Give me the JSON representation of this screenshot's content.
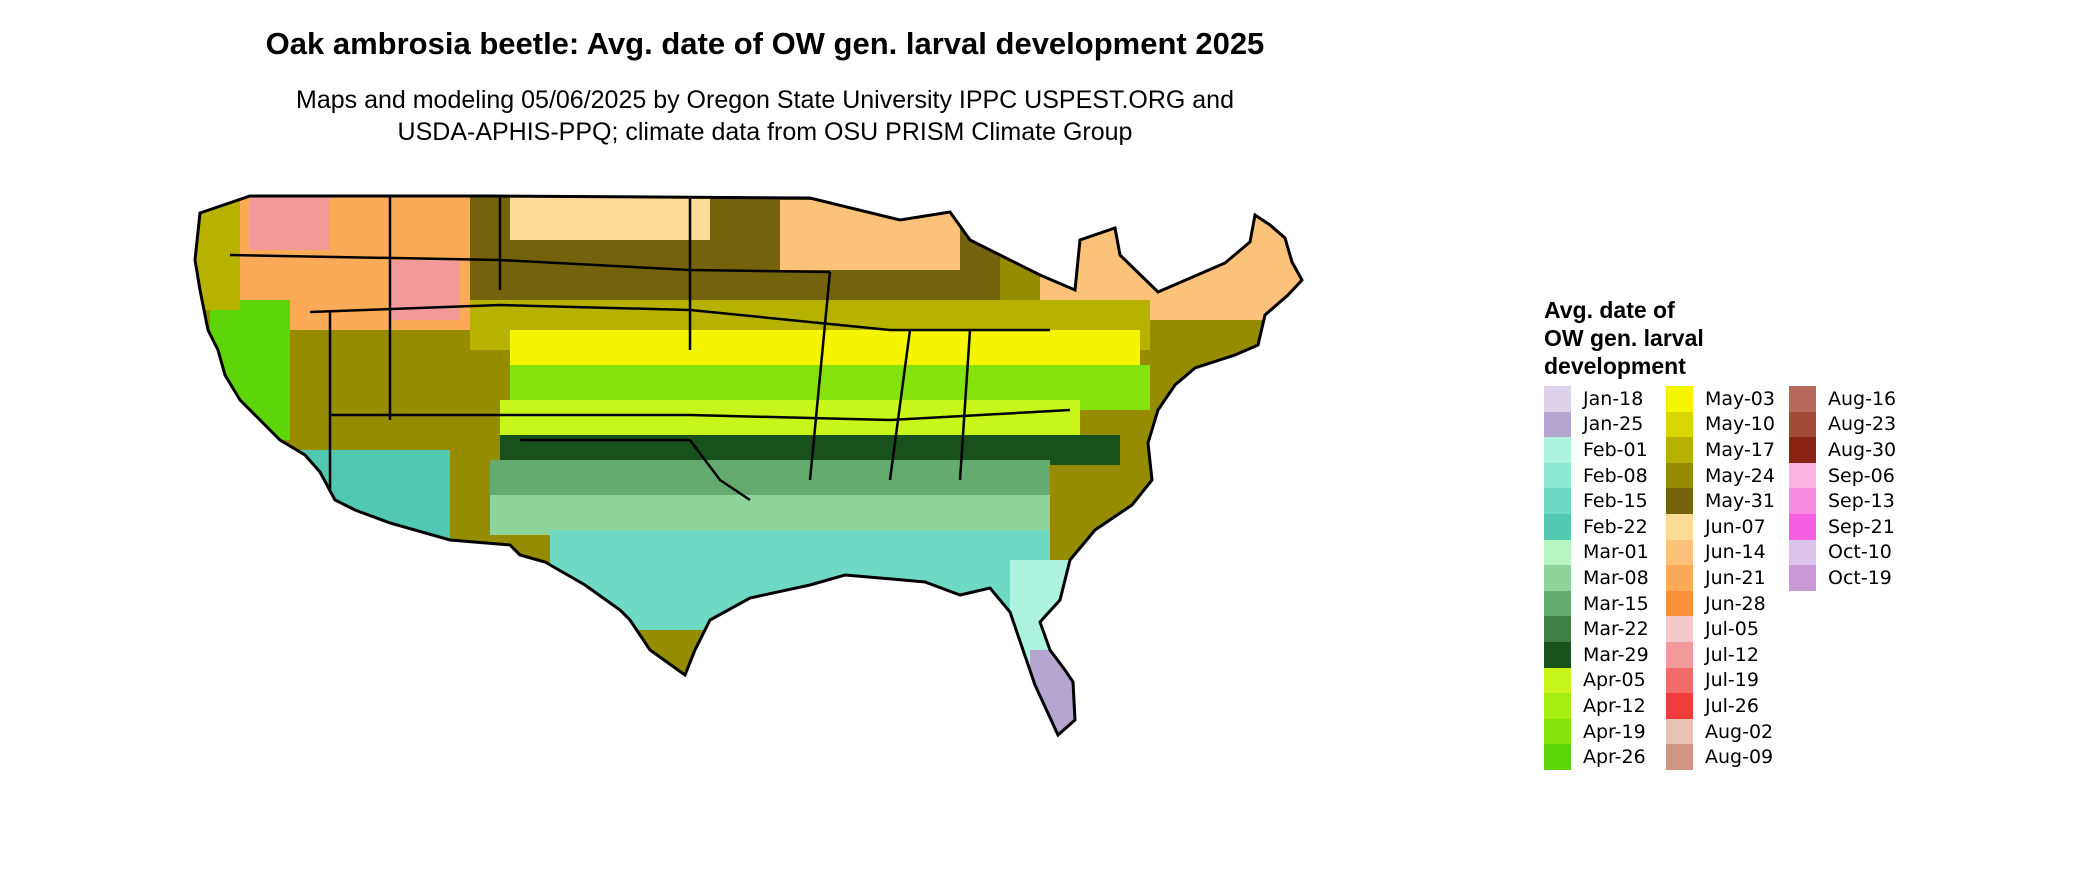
{
  "title": "Oak ambrosia beetle: Avg. date of OW gen. larval development 2025",
  "subtitle_line1": "Maps and modeling 05/06/2025 by Oregon State University IPPC USPEST.ORG and",
  "subtitle_line2": "USDA-APHIS-PPQ; climate data from OSU PRISM Climate Group",
  "legend": {
    "title_lines": [
      "Avg. date of",
      "OW gen. larval",
      "development"
    ],
    "items": [
      {
        "label": "Jan-18",
        "color": "#dcd3ea"
      },
      {
        "label": "Jan-25",
        "color": "#b4a6cf"
      },
      {
        "label": "Feb-01",
        "color": "#aef3e0"
      },
      {
        "label": "Feb-08",
        "color": "#8ee8d2"
      },
      {
        "label": "Feb-15",
        "color": "#6fdac4"
      },
      {
        "label": "Feb-22",
        "color": "#52c8b2"
      },
      {
        "label": "Mar-01",
        "color": "#b8f5c0"
      },
      {
        "label": "Mar-08",
        "color": "#8fd49a"
      },
      {
        "label": "Mar-15",
        "color": "#64ab6f"
      },
      {
        "label": "Mar-22",
        "color": "#3d7f45"
      },
      {
        "label": "Mar-29",
        "color": "#18511c"
      },
      {
        "label": "Apr-05",
        "color": "#c8f51a"
      },
      {
        "label": "Apr-12",
        "color": "#a6ee12"
      },
      {
        "label": "Apr-19",
        "color": "#84e30c"
      },
      {
        "label": "Apr-26",
        "color": "#5dd508"
      },
      {
        "label": "May-03",
        "color": "#f5f500"
      },
      {
        "label": "May-10",
        "color": "#d8d800"
      },
      {
        "label": "May-17",
        "color": "#b7b200"
      },
      {
        "label": "May-24",
        "color": "#958c00"
      },
      {
        "label": "May-31",
        "color": "#74620d"
      },
      {
        "label": "Jun-07",
        "color": "#fddb99"
      },
      {
        "label": "Jun-14",
        "color": "#fcc27a"
      },
      {
        "label": "Jun-21",
        "color": "#fbaa58"
      },
      {
        "label": "Jun-28",
        "color": "#f99238"
      },
      {
        "label": "Jul-05",
        "color": "#f5c9c9"
      },
      {
        "label": "Jul-12",
        "color": "#f29a9a"
      },
      {
        "label": "Jul-19",
        "color": "#f26b6b"
      },
      {
        "label": "Jul-26",
        "color": "#f23c3c"
      },
      {
        "label": "Aug-02",
        "color": "#e8c3b3"
      },
      {
        "label": "Aug-09",
        "color": "#cf9585"
      },
      {
        "label": "Aug-16",
        "color": "#b6695a"
      },
      {
        "label": "Aug-23",
        "color": "#a3493a"
      },
      {
        "label": "Aug-30",
        "color": "#8b2315"
      },
      {
        "label": "Sep-06",
        "color": "#f9b4e3"
      },
      {
        "label": "Sep-13",
        "color": "#f88be0"
      },
      {
        "label": "Sep-21",
        "color": "#f55fe2"
      },
      {
        "label": "Oct-10",
        "color": "#ddc3ec"
      },
      {
        "label": "Oct-19",
        "color": "#c99ad6"
      }
    ]
  }
}
